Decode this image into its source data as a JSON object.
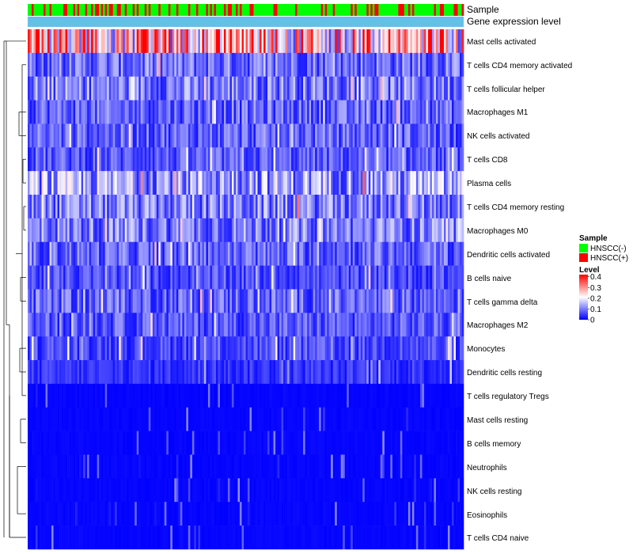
{
  "chart_data": {
    "type": "heatmap",
    "annotation_rows": [
      {
        "name": "Sample",
        "kind": "categorical"
      },
      {
        "name": "Gene expression level",
        "kind": "constant",
        "color": "#66bfe6"
      }
    ],
    "rows": [
      "Mast cells activated",
      "T cells CD4 memory activated",
      "T cells follicular helper",
      "Macrophages M1",
      "NK cells activated",
      "T cells CD8",
      "Plasma cells",
      "T cells CD4 memory resting",
      "Macrophages M0",
      "Dendritic cells activated",
      "B cells naive",
      "T cells gamma delta",
      "Macrophages M2",
      "Monocytes",
      "Dendritic cells resting",
      "T cells regulatory  Tregs",
      "Mast cells resting",
      "B cells memory",
      "Neutrophils",
      "NK cells resting",
      "Eosinophils",
      "T cells CD4 naive"
    ],
    "row_mean_level": [
      0.26,
      0.09,
      0.1,
      0.08,
      0.08,
      0.07,
      0.13,
      0.1,
      0.1,
      0.08,
      0.06,
      0.08,
      0.07,
      0.06,
      0.04,
      0.02,
      0.01,
      0.01,
      0.01,
      0.01,
      0.005,
      0.01
    ],
    "n_samples": 220,
    "legend": {
      "sample": {
        "title": "Sample",
        "items": [
          {
            "label": "HNSCC(-)",
            "color": "#00ff00"
          },
          {
            "label": "HNSCC(+)",
            "color": "#ff0000"
          }
        ]
      },
      "level": {
        "title": "Level",
        "ticks": [
          "0.4",
          "0.3",
          "0.2",
          "0.1",
          "0"
        ],
        "tick_values": [
          0.4,
          0.3,
          0.2,
          0.1,
          0
        ],
        "range": [
          0,
          0.42
        ],
        "colors": {
          "low": "#0000ff",
          "mid": "#ffffff",
          "high": "#ff0000"
        }
      }
    }
  }
}
